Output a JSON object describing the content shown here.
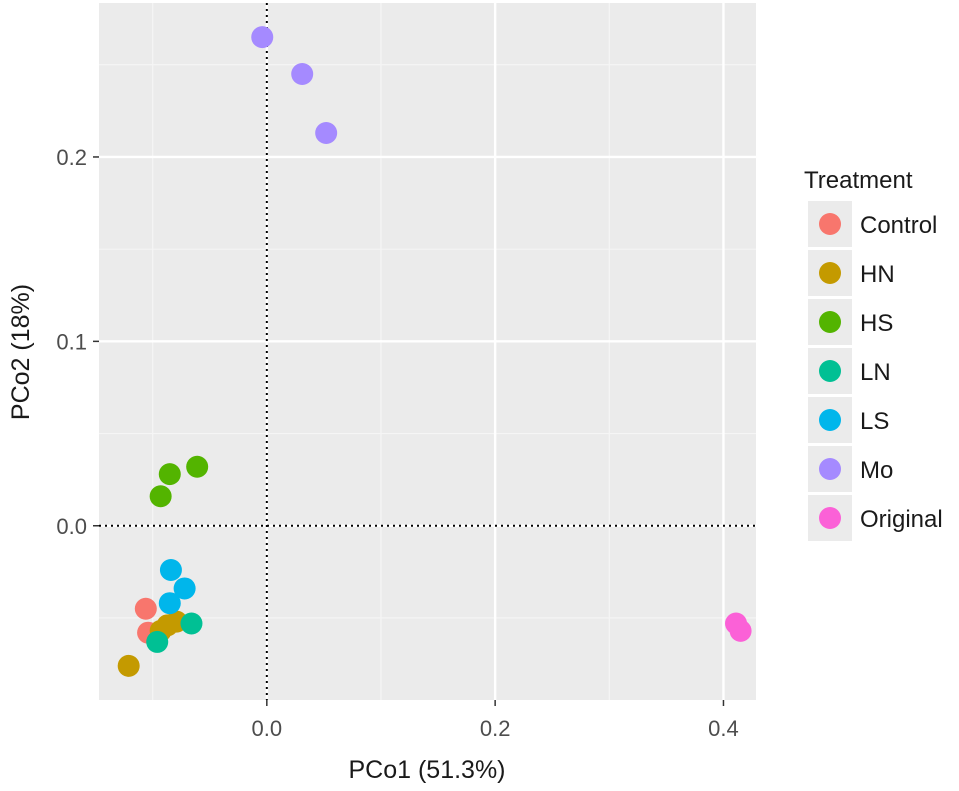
{
  "chart_data": {
    "type": "scatter",
    "title": "",
    "xlabel": "PCo1 (51.3%)",
    "ylabel": "PCo2 (18%)",
    "xlim": [
      -0.147,
      0.4285
    ],
    "ylim": [
      -0.0945,
      0.2835
    ],
    "x_ticks": [
      0.0,
      0.2,
      0.4
    ],
    "x_tick_labels": [
      "0.0",
      "0.2",
      "0.4"
    ],
    "y_ticks": [
      0.0,
      0.1,
      0.2
    ],
    "y_tick_labels": [
      "0.0",
      "0.1",
      "0.2"
    ],
    "x_minor_ticks": [
      -0.1,
      0.1,
      0.3
    ],
    "y_minor_ticks": [
      -0.05,
      0.05,
      0.15,
      0.25
    ],
    "grid": true,
    "reference_lines": {
      "x": 0.0,
      "y": 0.0,
      "style": "dotted"
    },
    "legend_title": "Treatment",
    "legend_position": "right",
    "series": [
      {
        "name": "Control",
        "color": "#F8766D",
        "points": [
          [
            -0.106,
            -0.045
          ],
          [
            -0.104,
            -0.058
          ]
        ]
      },
      {
        "name": "HN",
        "color": "#C49A00",
        "points": [
          [
            -0.121,
            -0.076
          ],
          [
            -0.093,
            -0.057
          ],
          [
            -0.087,
            -0.054
          ],
          [
            -0.079,
            -0.052
          ]
        ]
      },
      {
        "name": "HS",
        "color": "#53B400",
        "points": [
          [
            -0.093,
            0.016
          ],
          [
            -0.085,
            0.028
          ],
          [
            -0.061,
            0.032
          ]
        ]
      },
      {
        "name": "LN",
        "color": "#00C094",
        "points": [
          [
            -0.096,
            -0.063
          ],
          [
            -0.066,
            -0.053
          ]
        ]
      },
      {
        "name": "LS",
        "color": "#00B6EB",
        "points": [
          [
            -0.084,
            -0.024
          ],
          [
            -0.072,
            -0.034
          ],
          [
            -0.085,
            -0.042
          ]
        ]
      },
      {
        "name": "Mo",
        "color": "#A58AFF",
        "points": [
          [
            -0.004,
            0.265
          ],
          [
            0.031,
            0.245
          ],
          [
            0.052,
            0.213
          ]
        ]
      },
      {
        "name": "Original",
        "color": "#FB61D7",
        "points": [
          [
            0.411,
            -0.053
          ],
          [
            0.415,
            -0.057
          ]
        ]
      }
    ]
  }
}
